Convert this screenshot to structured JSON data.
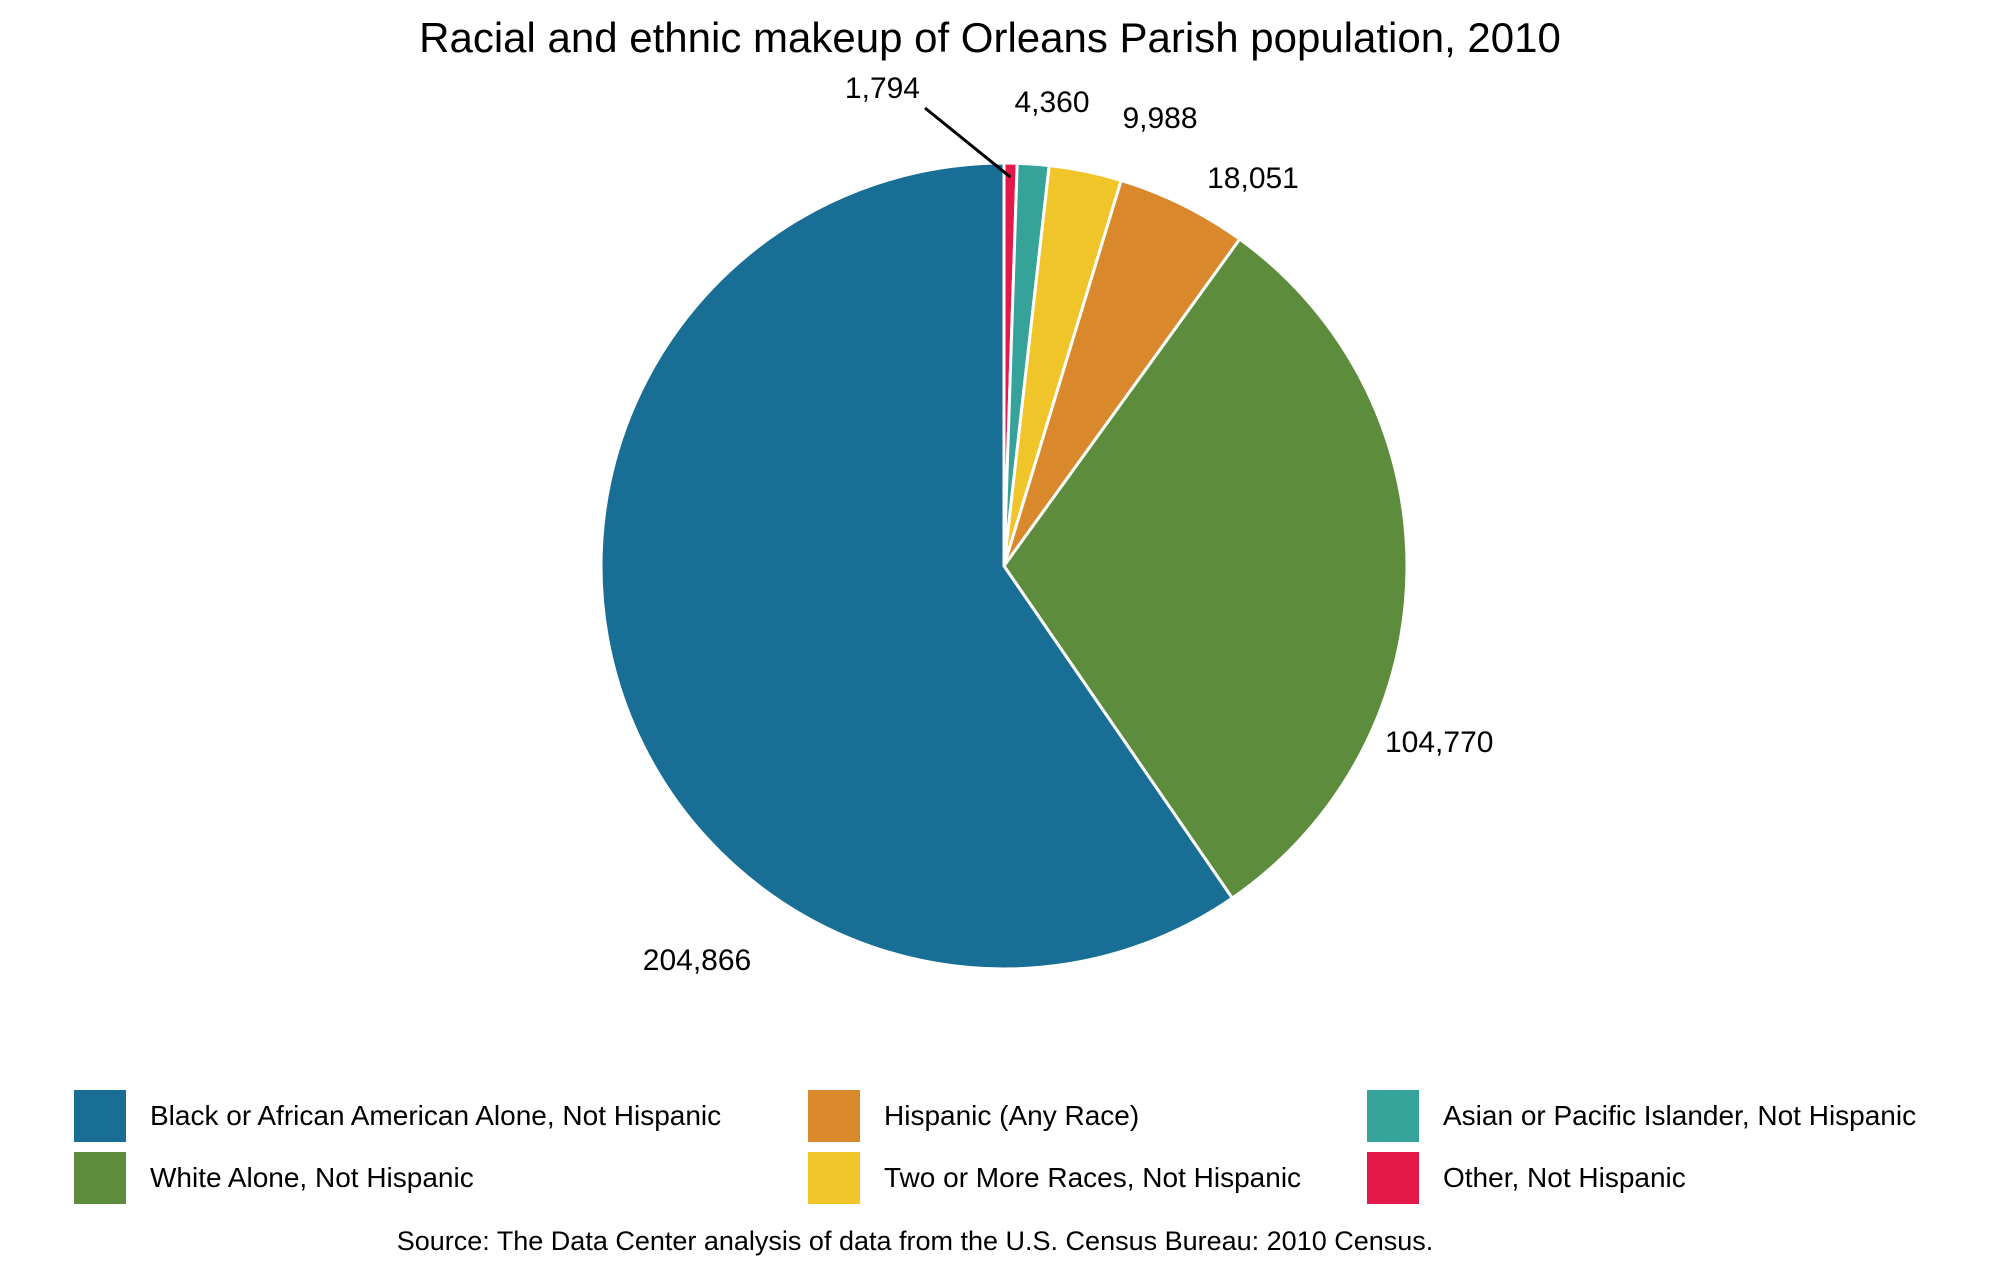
{
  "chart_data": {
    "type": "pie",
    "title": "Racial and ethnic makeup of Orleans Parish population, 2010",
    "start_angle": "12 o'clock",
    "direction": "clockwise",
    "slices": [
      {
        "name": "Other, Not Hispanic",
        "value": 1794,
        "label": "1,794",
        "color": "#E31A47"
      },
      {
        "name": "Asian or Pacific Islander, Not Hispanic",
        "value": 4360,
        "label": "4,360",
        "color": "#36A39B"
      },
      {
        "name": "Two or More Races, Not Hispanic",
        "value": 9988,
        "label": "9,988",
        "color": "#F0C52A"
      },
      {
        "name": "Hispanic (Any Race)",
        "value": 18051,
        "label": "18,051",
        "color": "#D9892C"
      },
      {
        "name": "White Alone, Not Hispanic",
        "value": 104770,
        "label": "104,770",
        "color": "#5E8C3D"
      },
      {
        "name": "Black or African American Alone, Not Hispanic",
        "value": 204866,
        "label": "204,866",
        "color": "#186E94"
      }
    ],
    "legend": {
      "position": "bottom",
      "items": [
        {
          "label": "Black or African American Alone, Not Hispanic",
          "color": "#186E94"
        },
        {
          "label": "Hispanic (Any Race)",
          "color": "#D9892C"
        },
        {
          "label": "Asian or Pacific Islander, Not Hispanic",
          "color": "#36A39B"
        },
        {
          "label": "White Alone, Not Hispanic",
          "color": "#5E8C3D"
        },
        {
          "label": "Two or More Races, Not Hispanic",
          "color": "#F0C52A"
        },
        {
          "label": "Other, Not Hispanic",
          "color": "#E31A47"
        }
      ]
    },
    "source": "Source: The Data Center analysis of data from the U.S. Census Bureau: 2010 Census."
  }
}
